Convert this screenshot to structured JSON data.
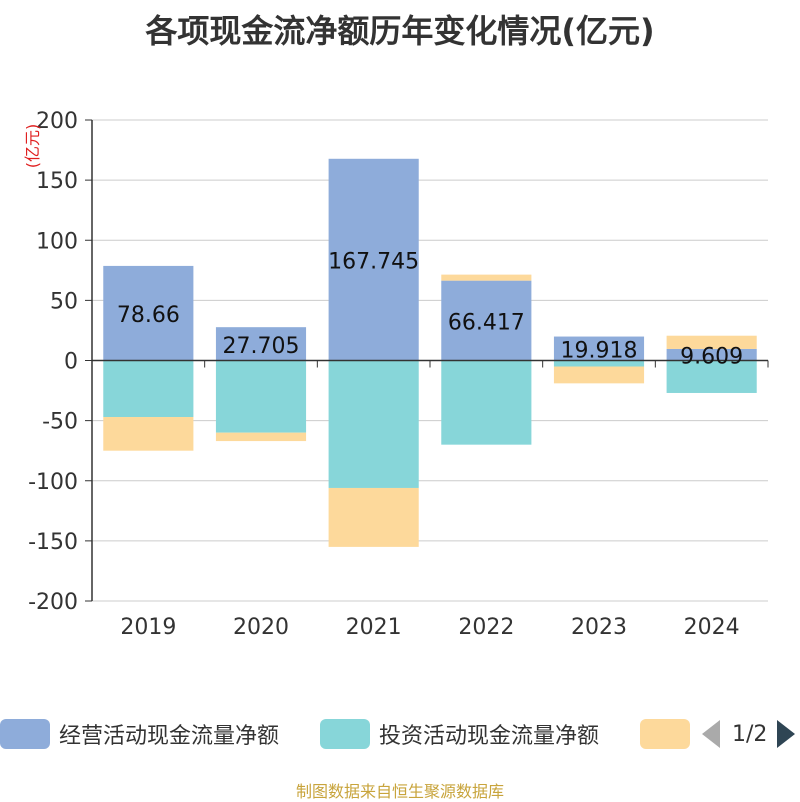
{
  "source_note": "制图数据来自恒生聚源数据库",
  "legend": {
    "page_indicator": "1/2"
  },
  "chart_data": {
    "type": "bar",
    "stacked": true,
    "title": "各项现金流净额历年变化情况(亿元)",
    "ylabel": "(亿元)",
    "ylim": [
      -200,
      200
    ],
    "yticks": [
      200,
      150,
      100,
      50,
      0,
      -50,
      -100,
      -150,
      -200
    ],
    "grid": true,
    "legend_position": "bottom",
    "categories": [
      "2019",
      "2020",
      "2021",
      "2022",
      "2023",
      "2024"
    ],
    "series": [
      {
        "name": "经营活动现金流量净额",
        "color": "#8eacda",
        "values": [
          78.66,
          27.705,
          167.745,
          66.417,
          19.918,
          9.609
        ],
        "labels": [
          "78.66",
          "27.705",
          "167.745",
          "66.417",
          "19.918",
          "9.609"
        ]
      },
      {
        "name": "投资活动现金流量净额",
        "color": "#87d6d9",
        "values": [
          -47,
          -60,
          -106,
          -70,
          -5,
          -27
        ]
      },
      {
        "name": "",
        "color": "#fdd99b",
        "values": [
          -28,
          -7,
          -49,
          5,
          -14,
          11
        ]
      }
    ]
  }
}
